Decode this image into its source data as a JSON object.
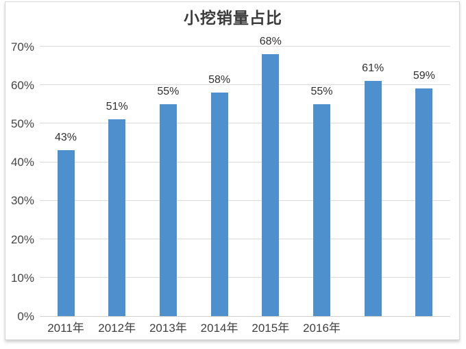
{
  "chart_data": {
    "type": "bar",
    "title": "小挖销量占比",
    "categories": [
      "2011年",
      "2012年",
      "2013年",
      "2014年",
      "2015年",
      "2016年",
      "",
      ""
    ],
    "values": [
      43,
      51,
      55,
      58,
      68,
      55,
      61,
      59
    ],
    "value_labels": [
      "43%",
      "51%",
      "55%",
      "58%",
      "68%",
      "55%",
      "61%",
      "59%"
    ],
    "xlabel": "",
    "ylabel": "",
    "ylim": [
      0,
      70
    ],
    "ytick_step": 10,
    "ytick_labels": [
      "0%",
      "10%",
      "20%",
      "30%",
      "40%",
      "50%",
      "60%",
      "70%"
    ],
    "grid": "horizontal",
    "legend": "none"
  },
  "colors": {
    "bar": "#4E90CE",
    "gridline": "#DBDBDB",
    "baseline": "#CFCFCF",
    "title_text": "#3A3A3A",
    "axis_text": "#454545",
    "frame_border": "#D6D6D6"
  }
}
